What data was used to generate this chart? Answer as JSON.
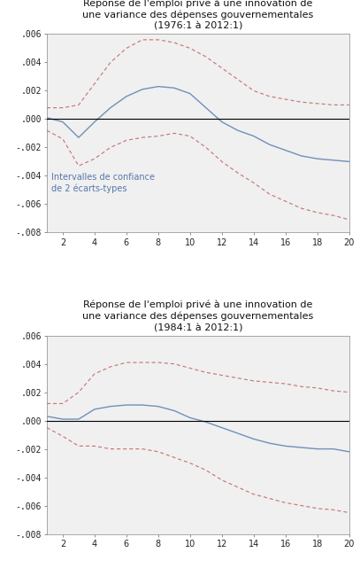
{
  "title1_line1": "Réponse de l'emploi privé à une innovation de",
  "title1_line2": "une variance des dépenses gouvernementales",
  "title1_line3": "(1976:1 à 2012:1)",
  "title2_line1": "Réponse de l'emploi privé à une innovation de",
  "title2_line2": "une variance des dépenses gouvernementales",
  "title2_line3": "(1984:1 à 2012:1)",
  "x": [
    1,
    2,
    3,
    4,
    5,
    6,
    7,
    8,
    9,
    10,
    11,
    12,
    13,
    14,
    15,
    16,
    17,
    18,
    19,
    20
  ],
  "chart1_center": [
    0.0001,
    -0.0002,
    -0.0013,
    -0.0002,
    0.0008,
    0.0016,
    0.0021,
    0.0023,
    0.0022,
    0.0018,
    0.0008,
    -0.0002,
    -0.0008,
    -0.0012,
    -0.0018,
    -0.0022,
    -0.0026,
    -0.0028,
    -0.0029,
    -0.003
  ],
  "chart1_upper": [
    0.0008,
    0.0008,
    0.001,
    0.0025,
    0.004,
    0.005,
    0.0056,
    0.0056,
    0.0054,
    0.005,
    0.0044,
    0.0036,
    0.0028,
    0.002,
    0.0016,
    0.0014,
    0.0012,
    0.0011,
    0.001,
    0.001
  ],
  "chart1_lower": [
    -0.0008,
    -0.0014,
    -0.0033,
    -0.0028,
    -0.002,
    -0.0015,
    -0.0013,
    -0.0012,
    -0.001,
    -0.0012,
    -0.002,
    -0.003,
    -0.0038,
    -0.0045,
    -0.0053,
    -0.0058,
    -0.0063,
    -0.0066,
    -0.0068,
    -0.0071
  ],
  "chart2_center": [
    0.0003,
    0.0001,
    0.0001,
    0.0008,
    0.001,
    0.0011,
    0.0011,
    0.001,
    0.0007,
    0.0002,
    -0.0001,
    -0.0005,
    -0.0009,
    -0.0013,
    -0.0016,
    -0.0018,
    -0.0019,
    -0.002,
    -0.002,
    -0.0022
  ],
  "chart2_upper": [
    0.0012,
    0.0012,
    0.002,
    0.0033,
    0.0038,
    0.0041,
    0.0041,
    0.0041,
    0.004,
    0.0037,
    0.0034,
    0.0032,
    0.003,
    0.0028,
    0.0027,
    0.0026,
    0.0024,
    0.0023,
    0.0021,
    0.002
  ],
  "chart2_lower": [
    -0.0005,
    -0.0011,
    -0.0018,
    -0.0018,
    -0.002,
    -0.002,
    -0.002,
    -0.0022,
    -0.0026,
    -0.003,
    -0.0035,
    -0.0042,
    -0.0047,
    -0.0052,
    -0.0055,
    -0.0058,
    -0.006,
    -0.0062,
    -0.0063,
    -0.0065
  ],
  "center_color": "#7090b8",
  "ci_color": "#c87878",
  "zero_line_color": "#000000",
  "bg_color": "#ffffff",
  "plot_bg_color": "#f0f0f0",
  "annotation_text": "Intervalles de confiance\nde 2 écarts-types",
  "annotation_color": "#5577aa",
  "ylim": [
    -0.008,
    0.006
  ],
  "yticks": [
    -0.008,
    -0.006,
    -0.004,
    -0.002,
    0.0,
    0.002,
    0.004,
    0.006
  ],
  "xticks": [
    2,
    4,
    6,
    8,
    10,
    12,
    14,
    16,
    18,
    20
  ],
  "title_fontsize": 8.0,
  "tick_fontsize": 7.0,
  "annot_fontsize": 7.0
}
